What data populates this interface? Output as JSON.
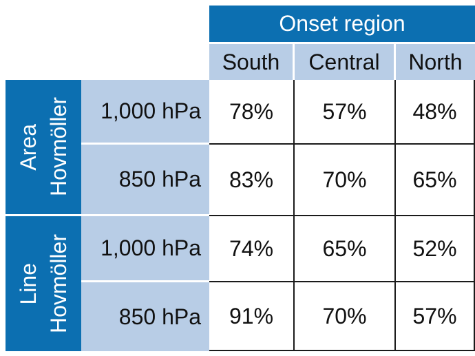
{
  "chart_data": {
    "type": "table",
    "group_header": "Onset region",
    "columns": [
      "South",
      "Central",
      "North"
    ],
    "row_groups": [
      {
        "label_line1": "Area",
        "label_line2": "Hovmöller",
        "rows": [
          {
            "level": "1,000 hPa",
            "values": [
              "78%",
              "57%",
              "48%"
            ]
          },
          {
            "level": "850 hPa",
            "values": [
              "83%",
              "70%",
              "65%"
            ]
          }
        ]
      },
      {
        "label_line1": "Line",
        "label_line2": "Hovmöller",
        "rows": [
          {
            "level": "1,000 hPa",
            "values": [
              "74%",
              "65%",
              "52%"
            ]
          },
          {
            "level": "850 hPa",
            "values": [
              "91%",
              "70%",
              "57%"
            ]
          }
        ]
      }
    ],
    "colors": {
      "header_dark": "#0c6fb1",
      "header_light": "#b8cde6",
      "grid": "#1a1a1a"
    }
  }
}
